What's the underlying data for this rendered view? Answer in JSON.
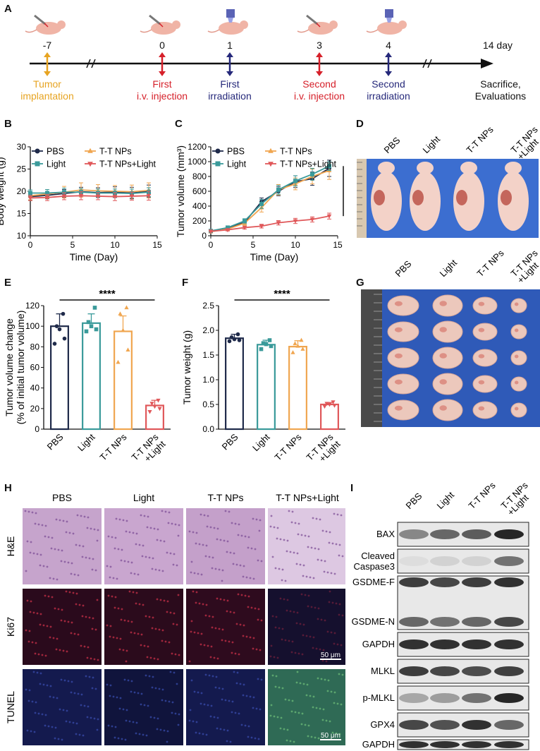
{
  "panels": {
    "A": "A",
    "B": "B",
    "C": "C",
    "D": "D",
    "E": "E",
    "F": "F",
    "G": "G",
    "H": "H",
    "I": "I"
  },
  "timeline": {
    "events": [
      {
        "day": "-7",
        "line1": "Tumor",
        "line2": "implantation",
        "color": "#e7a422",
        "icon": "syringe-mouse-icon"
      },
      {
        "day": "0",
        "line1": "First",
        "line2": "i.v. injection",
        "color": "#d6202a",
        "icon": "syringe-mouse-icon"
      },
      {
        "day": "1",
        "line1": "First",
        "line2": "irradiation",
        "color": "#25287a",
        "icon": "laser-mouse-icon"
      },
      {
        "day": "3",
        "line1": "Second",
        "line2": "i.v. injection",
        "color": "#d6202a",
        "icon": "syringe-mouse-icon"
      },
      {
        "day": "4",
        "line1": "Second",
        "line2": "irradiation",
        "color": "#25287a",
        "icon": "laser-mouse-icon"
      },
      {
        "day": "14 day",
        "line1": "Sacrifice,",
        "line2": "Evaluations",
        "color": "#111111",
        "icon": ""
      }
    ]
  },
  "groups": [
    "PBS",
    "Light",
    "T-T NPs",
    "T-T NPs+Light"
  ],
  "group_colors": {
    "PBS": "#1f2a4a",
    "Light": "#3a9a9a",
    "T-T NPs": "#f0a650",
    "T-T NPs+Light": "#e0585a"
  },
  "group_markers": {
    "PBS": "circle",
    "Light": "square",
    "T-T NPs": "triangle-up",
    "T-T NPs+Light": "triangle-down"
  },
  "chart_data": [
    {
      "id": "B",
      "type": "line",
      "xlabel": "Time (Day)",
      "ylabel": "Body weight (g)",
      "xlim": [
        0,
        15
      ],
      "ylim": [
        10,
        30
      ],
      "xticks": [
        0,
        5,
        10,
        15
      ],
      "yticks": [
        10,
        15,
        20,
        25,
        30
      ],
      "x": [
        0,
        2,
        4,
        6,
        8,
        10,
        12,
        14
      ],
      "series": [
        {
          "name": "PBS",
          "values": [
            18.8,
            19.1,
            19.5,
            19.9,
            19.7,
            19.8,
            19.6,
            20.0
          ],
          "err": [
            0.8,
            0.8,
            0.9,
            1.0,
            1.1,
            1.2,
            1.3,
            1.4
          ]
        },
        {
          "name": "T-T NPs",
          "values": [
            19.0,
            19.4,
            19.8,
            20.3,
            20.1,
            20.0,
            19.9,
            20.2
          ],
          "err": [
            0.9,
            1.0,
            1.3,
            1.6,
            1.4,
            1.3,
            1.5,
            1.7
          ]
        },
        {
          "name": "Light",
          "values": [
            19.6,
            19.6,
            19.8,
            19.8,
            19.6,
            19.6,
            19.5,
            19.8
          ],
          "err": [
            0.7,
            0.8,
            0.9,
            0.8,
            0.9,
            0.9,
            1.0,
            1.0
          ]
        },
        {
          "name": "T-T NPs+Light",
          "values": [
            18.5,
            18.6,
            18.9,
            19.0,
            18.9,
            18.8,
            18.9,
            19.0
          ],
          "err": [
            0.6,
            0.7,
            0.8,
            0.9,
            0.8,
            0.9,
            0.9,
            1.0
          ]
        }
      ],
      "legend": "top"
    },
    {
      "id": "C",
      "type": "line",
      "xlabel": "Time (Day)",
      "ylabel": "Tumor volume (mm³)",
      "xlim": [
        0,
        15
      ],
      "ylim": [
        0,
        1200
      ],
      "xticks": [
        0,
        5,
        10,
        15
      ],
      "yticks": [
        0,
        200,
        400,
        600,
        800,
        1000,
        1200
      ],
      "x": [
        0,
        2,
        4,
        6,
        8,
        10,
        12,
        14
      ],
      "series": [
        {
          "name": "PBS",
          "values": [
            60,
            100,
            180,
            460,
            600,
            730,
            770,
            910
          ],
          "err": [
            10,
            20,
            30,
            50,
            60,
            80,
            90,
            110
          ]
        },
        {
          "name": "T-T NPs",
          "values": [
            55,
            90,
            170,
            380,
            620,
            700,
            800,
            880
          ],
          "err": [
            10,
            20,
            30,
            60,
            70,
            80,
            100,
            120
          ]
        },
        {
          "name": "Light",
          "values": [
            65,
            110,
            200,
            430,
            620,
            740,
            830,
            940
          ],
          "err": [
            10,
            20,
            30,
            60,
            60,
            70,
            80,
            60
          ]
        },
        {
          "name": "T-T NPs+Light",
          "values": [
            60,
            80,
            110,
            130,
            175,
            200,
            220,
            265
          ],
          "err": [
            10,
            15,
            20,
            25,
            30,
            35,
            35,
            40
          ]
        }
      ],
      "significance": "****",
      "legend": "top"
    },
    {
      "id": "E",
      "type": "bar",
      "ylabel_line1": "Tumor volume change",
      "ylabel_line2": "(% of initial tumor volume)",
      "ylim": [
        0,
        120
      ],
      "yticks": [
        0,
        20,
        40,
        60,
        80,
        100,
        120
      ],
      "categories": [
        "PBS",
        "Light",
        "T-T NPs",
        "T-T NPs\n+Light"
      ],
      "values": [
        100,
        103,
        95,
        23
      ],
      "err": [
        12,
        9,
        15,
        5
      ],
      "points": [
        [
          83,
          88,
          97,
          100,
          112
        ],
        [
          95,
          97,
          100,
          104,
          118
        ],
        [
          65,
          77,
          96,
          112,
          118
        ],
        [
          17,
          20,
          22,
          25,
          28
        ]
      ],
      "significance": "****"
    },
    {
      "id": "F",
      "type": "bar",
      "ylabel": "Tumor weight (g)",
      "ylim": [
        0,
        2.5
      ],
      "yticks": [
        0.0,
        0.5,
        1.0,
        1.5,
        2.0,
        2.5
      ],
      "categories": [
        "PBS",
        "Light",
        "T-T NPs",
        "T-T NPs\n+Light"
      ],
      "values": [
        1.84,
        1.71,
        1.67,
        0.5
      ],
      "err": [
        0.08,
        0.09,
        0.12,
        0.04
      ],
      "points": [
        [
          1.78,
          1.8,
          1.82,
          1.86,
          1.92
        ],
        [
          1.62,
          1.68,
          1.72,
          1.74,
          1.8
        ],
        [
          1.55,
          1.62,
          1.68,
          1.73,
          1.8
        ],
        [
          0.46,
          0.48,
          0.5,
          0.52,
          0.55
        ]
      ],
      "significance": "****"
    }
  ],
  "panel_d": {
    "labels": [
      "PBS",
      "Light",
      "T-T NPs",
      "T-T NPs\n+Light"
    ]
  },
  "panel_g": {
    "labels": [
      "PBS",
      "Light",
      "T-T NPs",
      "T-T NPs\n+Light"
    ]
  },
  "panel_h": {
    "columns": [
      "PBS",
      "Light",
      "T-T NPs",
      "T-T NPs+Light"
    ],
    "rows": [
      "H&E",
      "Ki67",
      "TUNEL"
    ],
    "scale_bar": "50 μm"
  },
  "panel_i": {
    "columns": [
      "PBS",
      "Light",
      "T-T NPs",
      "T-T NPs\n+Light"
    ],
    "bands": [
      "BAX",
      "Cleaved\nCaspase3",
      "GSDME-F",
      "GSDME-N",
      "GAPDH",
      "MLKL",
      "p-MLKL",
      "GPX4",
      "GAPDH"
    ]
  }
}
